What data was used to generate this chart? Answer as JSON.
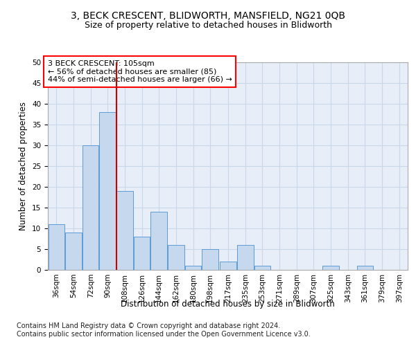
{
  "title": "3, BECK CRESCENT, BLIDWORTH, MANSFIELD, NG21 0QB",
  "subtitle": "Size of property relative to detached houses in Blidworth",
  "xlabel": "Distribution of detached houses by size in Blidworth",
  "ylabel": "Number of detached properties",
  "bins": [
    36,
    54,
    72,
    90,
    108,
    126,
    144,
    162,
    180,
    198,
    217,
    235,
    253,
    271,
    289,
    307,
    325,
    343,
    361,
    379,
    397
  ],
  "values": [
    11,
    9,
    30,
    38,
    19,
    8,
    14,
    6,
    1,
    5,
    2,
    6,
    1,
    0,
    0,
    0,
    1,
    0,
    1,
    0,
    0
  ],
  "bar_color": "#c5d8ed",
  "bar_edge_color": "#5b9bd5",
  "property_line_x": 108,
  "annotation_text": "3 BECK CRESCENT: 105sqm\n← 56% of detached houses are smaller (85)\n44% of semi-detached houses are larger (66) →",
  "red_line_color": "#cc0000",
  "ylim": [
    0,
    50
  ],
  "yticks": [
    0,
    5,
    10,
    15,
    20,
    25,
    30,
    35,
    40,
    45,
    50
  ],
  "grid_color": "#c8d8e8",
  "background_color": "#e8eef8",
  "footer_line1": "Contains HM Land Registry data © Crown copyright and database right 2024.",
  "footer_line2": "Contains public sector information licensed under the Open Government Licence v3.0.",
  "title_fontsize": 10,
  "subtitle_fontsize": 9,
  "axis_label_fontsize": 8.5,
  "tick_fontsize": 7.5,
  "annotation_fontsize": 8,
  "footer_fontsize": 7
}
